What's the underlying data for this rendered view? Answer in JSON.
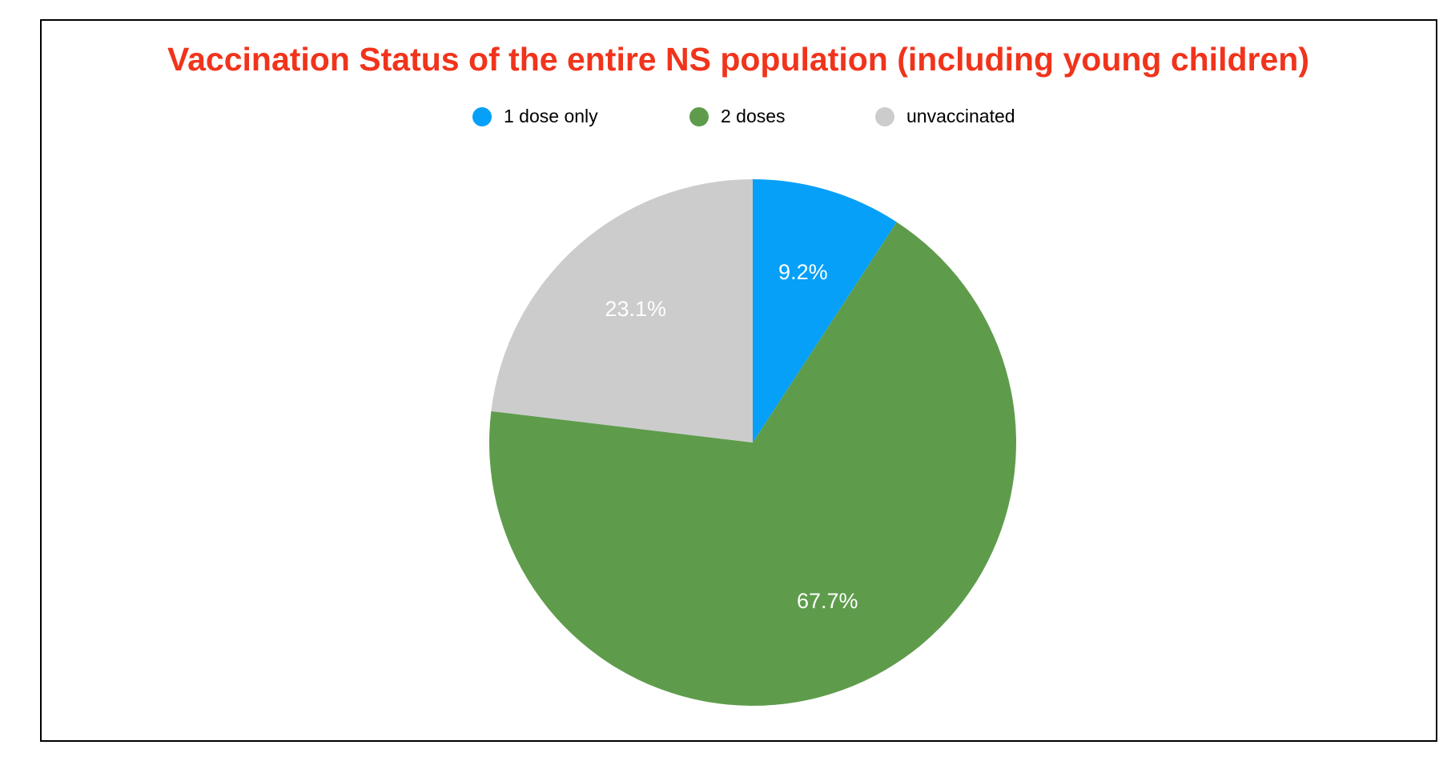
{
  "chart_data": {
    "type": "pie",
    "title": "Vaccination Status of the entire NS population (including young children)",
    "categories": [
      "1 dose only",
      "2 doses",
      "unvaccinated"
    ],
    "values": [
      9.2,
      67.7,
      23.1
    ],
    "value_labels": [
      "9.2%",
      "67.7%",
      "23.1%"
    ],
    "colors": [
      "#06a0f8",
      "#5e9c4c",
      "#cccccc"
    ],
    "legend": "top"
  }
}
